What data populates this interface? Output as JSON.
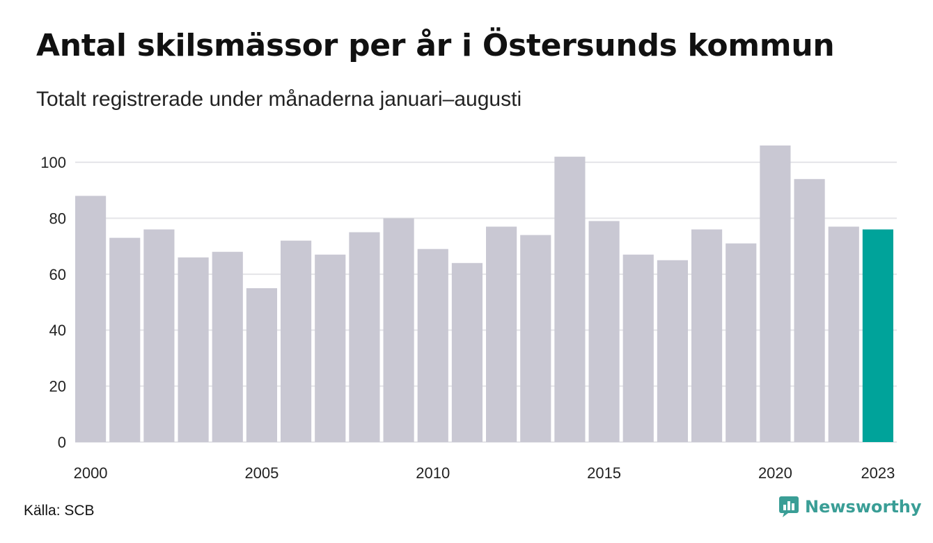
{
  "header": {
    "title": "Antal skilsmässor per år i Östersunds kommun",
    "subtitle": "Totalt registrerade under månaderna januari–augusti"
  },
  "footer": {
    "source": "Källa: SCB",
    "brand": "Newsworthy",
    "brand_icon": "newsworthy-logo-icon"
  },
  "colors": {
    "bar": "#c9c8d3",
    "highlight": "#00a39a",
    "grid": "#e4e4e8",
    "brand": "#3a9e96"
  },
  "chart_data": {
    "type": "bar",
    "categories": [
      "2000",
      "2001",
      "2002",
      "2003",
      "2004",
      "2005",
      "2006",
      "2007",
      "2008",
      "2009",
      "2010",
      "2011",
      "2012",
      "2013",
      "2014",
      "2015",
      "2016",
      "2017",
      "2018",
      "2019",
      "2020",
      "2021",
      "2022",
      "2023"
    ],
    "values": [
      88,
      73,
      76,
      66,
      68,
      55,
      72,
      67,
      75,
      80,
      69,
      64,
      77,
      74,
      102,
      79,
      67,
      65,
      76,
      71,
      106,
      94,
      77,
      76
    ],
    "highlight_category": "2023",
    "x_tick_labels": [
      "2000",
      "2005",
      "2010",
      "2015",
      "2020",
      "2023"
    ],
    "y_ticks": [
      0,
      20,
      40,
      60,
      80,
      100
    ],
    "ylim": [
      0,
      106
    ],
    "grid": true
  }
}
